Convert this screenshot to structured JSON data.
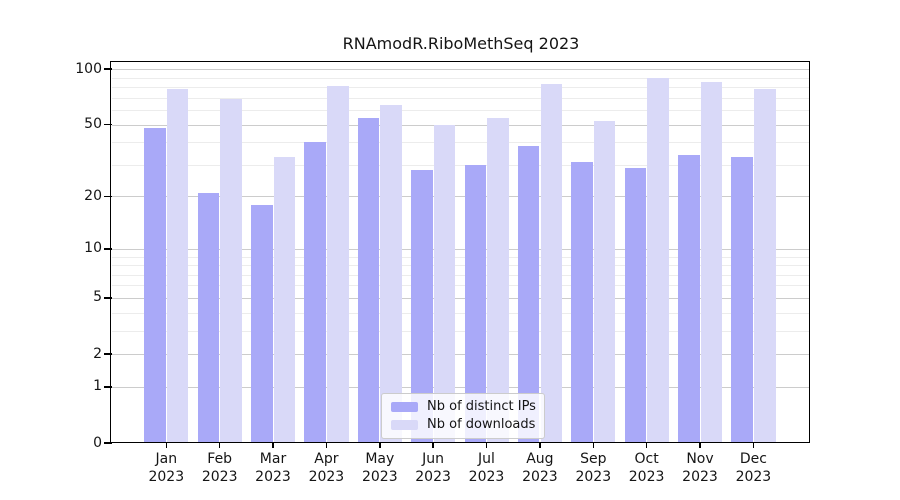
{
  "chart_data": {
    "type": "bar",
    "title": "RNAmodR.RiboMethSeq 2023",
    "year": "2023",
    "categories": [
      "Jan",
      "Feb",
      "Mar",
      "Apr",
      "May",
      "Jun",
      "Jul",
      "Aug",
      "Sep",
      "Oct",
      "Nov",
      "Dec"
    ],
    "series": [
      {
        "name": "Nb of distinct IPs",
        "color": "#a9a9f8",
        "values": [
          48,
          21,
          18,
          40,
          54,
          28,
          30,
          38,
          31,
          29,
          34,
          33
        ]
      },
      {
        "name": "Nb of downloads",
        "color": "#d9d9f8",
        "values": [
          78,
          69,
          33,
          81,
          64,
          50,
          54,
          83,
          52,
          90,
          85,
          78
        ]
      }
    ],
    "y_scale": "log1p",
    "y_ticks": [
      0,
      1,
      2,
      5,
      10,
      20,
      50,
      100
    ],
    "y_minor_gridlines": [
      3,
      4,
      6,
      7,
      8,
      9,
      30,
      40,
      60,
      70,
      80,
      90
    ],
    "ylim": [
      0,
      108
    ],
    "grid": true,
    "legend_position": "bottom-center",
    "colors": {
      "grid_major": "#cccccc",
      "grid_minor": "#ececec",
      "axis": "#000000",
      "text": "#151515"
    }
  }
}
